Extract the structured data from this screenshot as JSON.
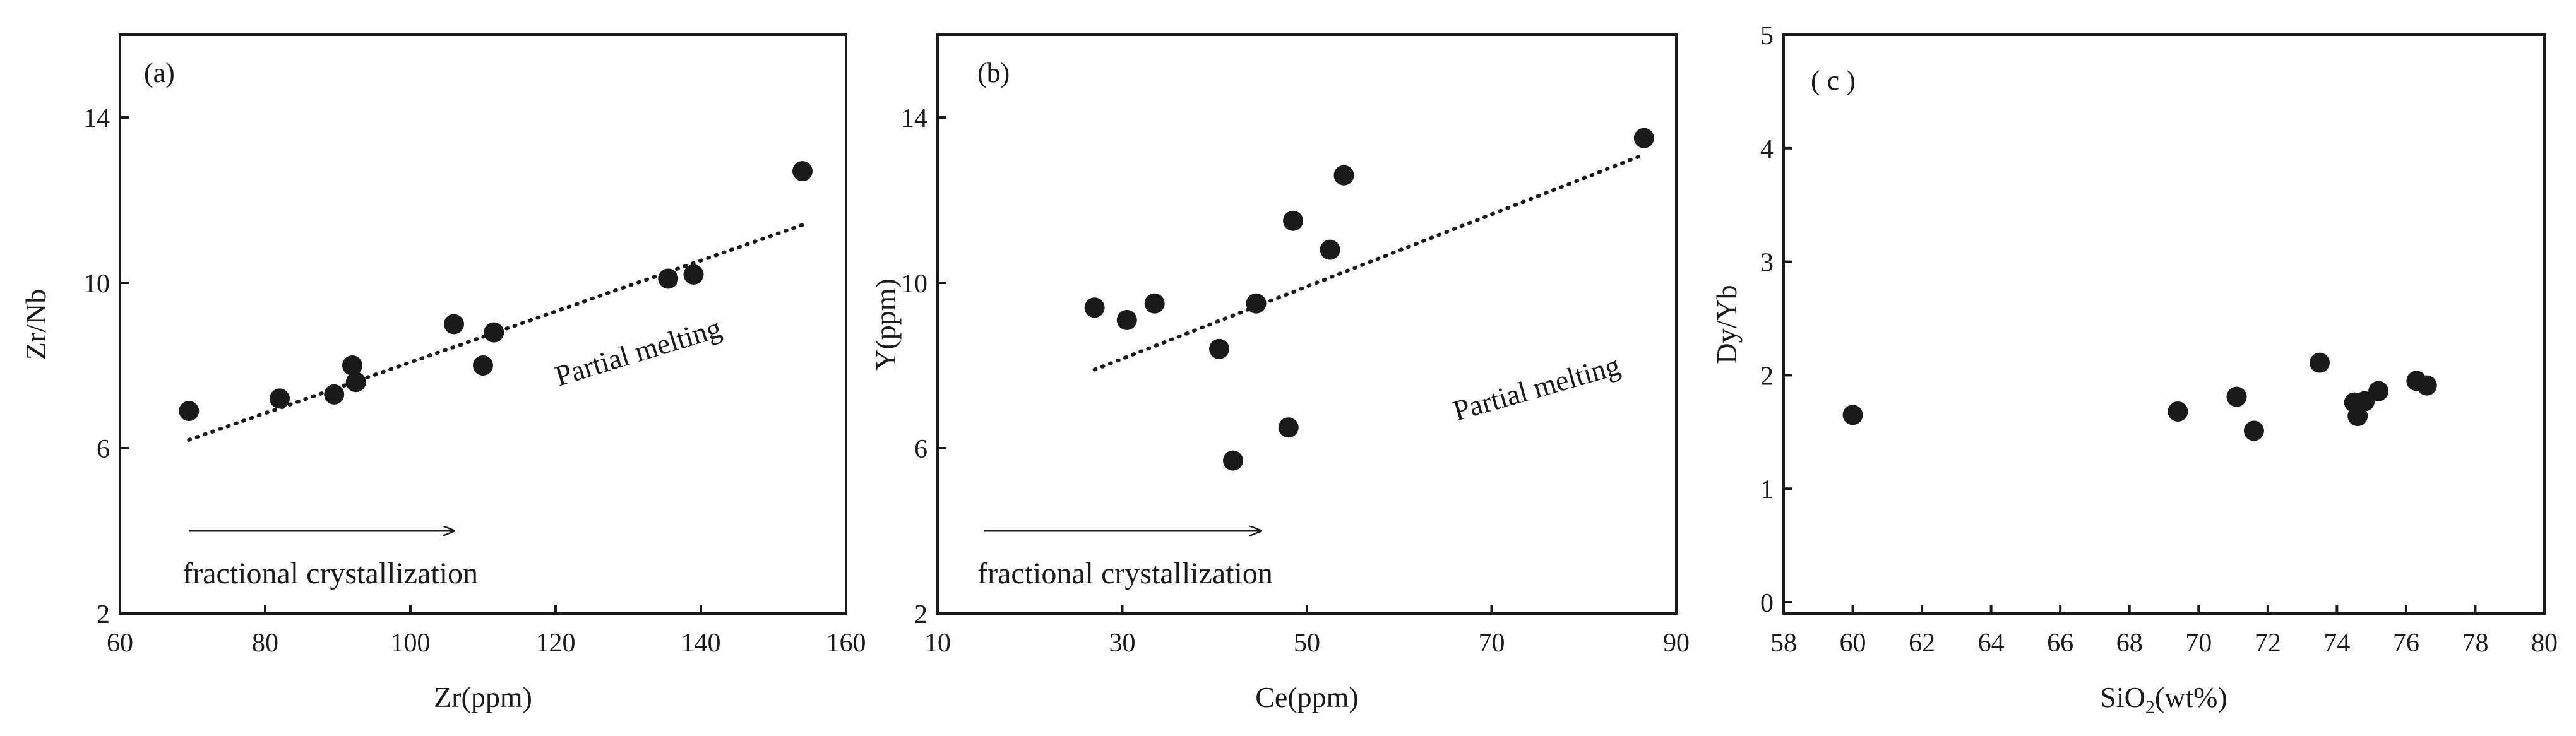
{
  "chart_data": [
    {
      "type": "scatter",
      "panel_label": "(a)",
      "xlabel": "Zr(ppm)",
      "ylabel": "Zr/Nb",
      "xlim": [
        60,
        160
      ],
      "ylim": [
        2,
        16
      ],
      "xticks": [
        "60",
        "80",
        "100",
        "120",
        "140",
        "160"
      ],
      "yticks": [
        "2",
        "6",
        "10",
        "14"
      ],
      "points": [
        {
          "x": 69.5,
          "y": 6.9
        },
        {
          "x": 82,
          "y": 7.2
        },
        {
          "x": 89.5,
          "y": 7.3
        },
        {
          "x": 92,
          "y": 8.0
        },
        {
          "x": 92.5,
          "y": 7.6
        },
        {
          "x": 106,
          "y": 9.0
        },
        {
          "x": 110,
          "y": 8.0
        },
        {
          "x": 111.5,
          "y": 8.8
        },
        {
          "x": 135.5,
          "y": 10.1
        },
        {
          "x": 139,
          "y": 10.2
        },
        {
          "x": 154,
          "y": 12.7
        }
      ],
      "trend": {
        "label": "Partial melting",
        "x": [
          69.5,
          154
        ],
        "y": [
          6.2,
          11.4
        ]
      },
      "arrow": {
        "label": "fractional crystallization",
        "x": [
          69.5,
          106
        ],
        "y": [
          4.0,
          4.0
        ]
      }
    },
    {
      "type": "scatter",
      "panel_label": "(b)",
      "xlabel": "Ce(ppm)",
      "ylabel": "Y(ppm)",
      "xlim": [
        10,
        90
      ],
      "ylim": [
        2,
        16
      ],
      "xticks": [
        "10",
        "30",
        "50",
        "70",
        "90"
      ],
      "yticks": [
        "2",
        "6",
        "10",
        "14"
      ],
      "points": [
        {
          "x": 27,
          "y": 9.4
        },
        {
          "x": 30.5,
          "y": 9.1
        },
        {
          "x": 33.5,
          "y": 9.5
        },
        {
          "x": 40.5,
          "y": 8.4
        },
        {
          "x": 42,
          "y": 5.7
        },
        {
          "x": 44.5,
          "y": 9.5
        },
        {
          "x": 48,
          "y": 6.5
        },
        {
          "x": 48.5,
          "y": 11.5
        },
        {
          "x": 52.5,
          "y": 10.8
        },
        {
          "x": 54,
          "y": 12.6
        },
        {
          "x": 86.5,
          "y": 13.5
        }
      ],
      "trend": {
        "label": "Partial melting",
        "x": [
          27,
          86.5
        ],
        "y": [
          7.9,
          13.1
        ]
      },
      "arrow": {
        "label": "fractional crystallization",
        "x": [
          15,
          45
        ],
        "y": [
          4.0,
          4.0
        ]
      }
    },
    {
      "type": "scatter",
      "panel_label": "( c )",
      "xlabel_main": "SiO",
      "xlabel_sub": "2",
      "xlabel_tail": "(wt%)",
      "ylabel": "Dy/Yb",
      "xlim": [
        58,
        80
      ],
      "ylim": [
        -0.1,
        5
      ],
      "xticks": [
        "58",
        "60",
        "62",
        "64",
        "66",
        "68",
        "70",
        "72",
        "74",
        "76",
        "78",
        "80"
      ],
      "yticks": [
        "0",
        "1",
        "2",
        "3",
        "4",
        "5"
      ],
      "points": [
        {
          "x": 60,
          "y": 1.65
        },
        {
          "x": 69.4,
          "y": 1.68
        },
        {
          "x": 71.1,
          "y": 1.81
        },
        {
          "x": 71.6,
          "y": 1.51
        },
        {
          "x": 73.5,
          "y": 2.11
        },
        {
          "x": 74.5,
          "y": 1.76
        },
        {
          "x": 74.6,
          "y": 1.64
        },
        {
          "x": 74.8,
          "y": 1.77
        },
        {
          "x": 75.2,
          "y": 1.86
        },
        {
          "x": 76.3,
          "y": 1.95
        },
        {
          "x": 76.6,
          "y": 1.91
        }
      ]
    }
  ]
}
